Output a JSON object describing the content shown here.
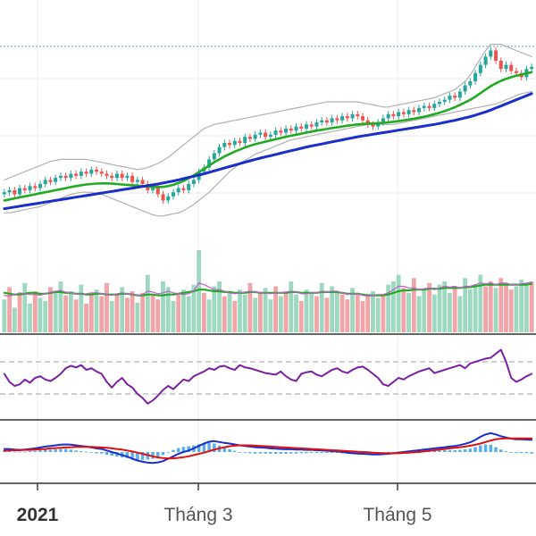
{
  "chart_data": {
    "type": "candlestick",
    "title": "",
    "xlabel": "",
    "ylabel": "",
    "grid": true,
    "x_tick_labels": [
      "2021",
      "Tháng 3",
      "Tháng 5"
    ],
    "x_tick_bold": [
      true,
      false,
      false
    ],
    "colors": {
      "up": "#26a69a",
      "down": "#ef5350",
      "up_volume": "#9ed8c0",
      "down_volume": "#f2a5a8",
      "ma_fast": "#22aa22",
      "ma_slow": "#1a2ecc",
      "bollinger": "#b0b0b0",
      "short_ma": "#c060d0",
      "rsi": "#7b1fa2",
      "macd": "#1a2ecc",
      "signal": "#e01010",
      "histogram": "#5aaee8",
      "reference_line": "#4fb3c8"
    },
    "price_panel": {
      "ylim": [
        0,
        100
      ],
      "reference_level": 97,
      "close": [
        26,
        27,
        25,
        28,
        27,
        29,
        28,
        30,
        32,
        31,
        33,
        34,
        33,
        35,
        34,
        36,
        35,
        37,
        36,
        35,
        34,
        33,
        35,
        33,
        34,
        31,
        32,
        30,
        27,
        28,
        25,
        22,
        24,
        26,
        28,
        27,
        30,
        32,
        36,
        38,
        42,
        45,
        48,
        50,
        49,
        51,
        50,
        53,
        52,
        54,
        55,
        53,
        54,
        56,
        55,
        57,
        56,
        58,
        57,
        59,
        58,
        60,
        61,
        60,
        62,
        61,
        63,
        62,
        64,
        63,
        61,
        59,
        58,
        60,
        62,
        64,
        63,
        65,
        64,
        66,
        65,
        67,
        68,
        67,
        69,
        70,
        71,
        73,
        72,
        75,
        78,
        80,
        84,
        88,
        92,
        95,
        90,
        86,
        88,
        85,
        84,
        82,
        86,
        87
      ],
      "ma_fast": [
        22,
        22.5,
        23,
        23.5,
        24,
        24.5,
        25,
        25.5,
        26,
        26.5,
        27,
        27.5,
        28,
        28.5,
        29,
        29.4,
        29.8,
        30,
        30.2,
        30.3,
        30.3,
        30.2,
        30,
        29.8,
        29.6,
        29.4,
        29.2,
        29,
        28.8,
        28.6,
        28.5,
        28.6,
        29,
        29.6,
        30.5,
        31.5,
        32.8,
        34.2,
        35.8,
        37.4,
        39,
        40.6,
        42,
        43.4,
        44.6,
        45.8,
        46.8,
        47.8,
        48.6,
        49.4,
        50,
        50.6,
        51.2,
        51.8,
        52.4,
        53,
        53.5,
        54,
        54.5,
        55,
        55.5,
        56,
        56.4,
        56.8,
        57.2,
        57.6,
        58,
        58.4,
        58.7,
        59,
        59.2,
        59.4,
        59.5,
        59.6,
        59.8,
        60,
        60.3,
        60.6,
        61,
        61.4,
        61.8,
        62.3,
        62.8,
        63.4,
        64,
        64.7,
        65.5,
        66.4,
        67.4,
        68.5,
        69.7,
        71,
        72.5,
        74.2,
        76,
        77.6,
        79,
        80.2,
        81.2,
        82,
        82.7,
        83.3,
        83.9,
        84.4
      ],
      "ma_slow": [
        18,
        18.4,
        18.8,
        19.2,
        19.6,
        20,
        20.4,
        20.8,
        21.2,
        21.6,
        22,
        22.4,
        22.8,
        23.2,
        23.6,
        24,
        24.4,
        24.8,
        25.2,
        25.6,
        26,
        26.4,
        26.8,
        27.2,
        27.6,
        28,
        28.4,
        28.8,
        29.2,
        29.6,
        30,
        30.5,
        31,
        31.5,
        32,
        32.6,
        33.2,
        33.8,
        34.4,
        35,
        35.7,
        36.4,
        37.1,
        37.8,
        38.5,
        39.2,
        39.9,
        40.6,
        41.3,
        42,
        42.6,
        43.2,
        43.8,
        44.4,
        45,
        45.6,
        46.2,
        46.8,
        47.4,
        48,
        48.5,
        49,
        49.5,
        50,
        50.5,
        51,
        51.5,
        52,
        52.5,
        53,
        53.4,
        53.8,
        54.2,
        54.6,
        55,
        55.4,
        55.8,
        56.2,
        56.6,
        57,
        57.4,
        57.8,
        58.2,
        58.6,
        59,
        59.5,
        60,
        60.5,
        61,
        61.6,
        62.2,
        62.8,
        63.5,
        64.3,
        65.1,
        66,
        67,
        68,
        69,
        70,
        71,
        72,
        73,
        74
      ],
      "bb_upper": [
        32,
        33,
        34,
        35,
        36,
        37,
        38,
        39,
        40,
        41,
        41.5,
        42,
        42,
        42,
        42,
        42,
        42,
        41.5,
        41,
        40.5,
        40,
        39.5,
        39,
        38.5,
        38,
        37.5,
        37,
        37.5,
        38,
        39,
        40,
        41.5,
        43,
        45,
        47,
        49,
        51,
        53,
        55,
        57,
        58,
        59,
        59.5,
        60,
        60.5,
        61,
        61.5,
        62,
        62.5,
        63,
        63.5,
        64,
        64.5,
        65,
        65.5,
        66,
        66.5,
        67,
        67.5,
        68,
        68.5,
        69,
        69.5,
        70,
        70,
        70,
        70,
        70,
        70,
        70,
        69.5,
        69,
        68.5,
        68,
        67.5,
        67.5,
        68,
        68.5,
        69,
        69.5,
        70,
        70.5,
        71,
        71.5,
        72,
        73,
        74,
        75,
        76,
        78,
        80,
        83,
        87,
        91,
        95,
        98,
        98,
        98,
        97,
        96,
        95,
        94,
        93,
        92
      ],
      "bb_lower": [
        16,
        16,
        16.5,
        17,
        17.5,
        18,
        18.5,
        19,
        20,
        21,
        22,
        23,
        24,
        25,
        25.5,
        26,
        26,
        26,
        25.5,
        25,
        24,
        23,
        22,
        21,
        20,
        19,
        18,
        17,
        16,
        15,
        14.5,
        14.5,
        15,
        15.5,
        16,
        17,
        18.5,
        20,
        22,
        24,
        26,
        28.5,
        31,
        33.5,
        36,
        38,
        40,
        41.5,
        43,
        44.5,
        45.5,
        46.5,
        47.5,
        48.5,
        49.5,
        50.5,
        51.5,
        52,
        52.5,
        53,
        53.5,
        54,
        54.5,
        55,
        55.5,
        56,
        56.5,
        57,
        57.5,
        58,
        58.5,
        59,
        59,
        59,
        59,
        59,
        59,
        59.5,
        60,
        60.5,
        61,
        61.5,
        62,
        62.5,
        63,
        63.5,
        64,
        64.5,
        65,
        65.5,
        66,
        66.5,
        67,
        67.5,
        68,
        68.5,
        69,
        70,
        71,
        72,
        73,
        74,
        74.5,
        75
      ]
    },
    "volume_panel": {
      "ylim": [
        0,
        100
      ],
      "values": [
        40,
        55,
        30,
        45,
        60,
        35,
        50,
        42,
        38,
        55,
        48,
        62,
        45,
        50,
        40,
        58,
        35,
        48,
        52,
        44,
        60,
        38,
        46,
        55,
        42,
        50,
        36,
        48,
        70,
        45,
        40,
        62,
        55,
        38,
        46,
        52,
        44,
        58,
        100,
        48,
        40,
        56,
        62,
        44,
        50,
        38,
        52,
        46,
        60,
        42,
        48,
        54,
        40,
        56,
        44,
        50,
        62,
        46,
        38,
        52,
        48,
        44,
        60,
        42,
        56,
        50,
        46,
        40,
        54,
        48,
        38,
        44,
        50,
        42,
        46,
        58,
        62,
        70,
        54,
        48,
        66,
        44,
        52,
        60,
        46,
        58,
        62,
        48,
        56,
        44,
        66,
        52,
        58,
        70,
        56,
        62,
        54,
        66,
        60,
        52,
        56,
        64,
        58,
        62
      ],
      "up": [
        1,
        0,
        1,
        0,
        1,
        1,
        0,
        1,
        1,
        0,
        1,
        1,
        0,
        1,
        0,
        1,
        0,
        0,
        1,
        0,
        0,
        1,
        0,
        1,
        0,
        0,
        1,
        0,
        1,
        0,
        0,
        1,
        1,
        1,
        0,
        1,
        1,
        1,
        1,
        0,
        1,
        1,
        1,
        0,
        1,
        0,
        1,
        1,
        0,
        1,
        0,
        1,
        1,
        0,
        1,
        0,
        1,
        1,
        0,
        1,
        1,
        0,
        1,
        0,
        1,
        1,
        0,
        0,
        1,
        0,
        0,
        0,
        1,
        1,
        0,
        1,
        1,
        1,
        0,
        1,
        0,
        1,
        1,
        0,
        1,
        1,
        1,
        1,
        0,
        1,
        1,
        1,
        1,
        1,
        0,
        0,
        1,
        0,
        0,
        0,
        1,
        1,
        1,
        0
      ],
      "ma_volume": [
        48,
        47,
        46,
        46,
        47,
        48,
        48,
        47,
        47,
        48,
        49,
        49,
        48,
        48,
        47,
        47,
        46,
        46,
        47,
        47,
        46,
        46,
        46,
        47,
        47,
        46,
        45,
        45,
        46,
        46,
        45,
        45,
        46,
        46,
        47,
        48,
        49,
        50,
        52,
        52,
        51,
        50,
        50,
        49,
        49,
        48,
        48,
        48,
        49,
        49,
        48,
        48,
        48,
        48,
        48,
        48,
        49,
        49,
        48,
        48,
        48,
        48,
        49,
        49,
        49,
        49,
        48,
        47,
        47,
        47,
        46,
        45,
        45,
        45,
        45,
        46,
        48,
        50,
        51,
        51,
        52,
        52,
        52,
        53,
        53,
        53,
        54,
        54,
        54,
        54,
        55,
        55,
        56,
        57,
        58,
        58,
        58,
        58,
        58,
        58,
        58,
        58,
        58,
        59
      ],
      "ma_volume_short": [
        45,
        44,
        46,
        48,
        47,
        46,
        46,
        45,
        47,
        49,
        50,
        51,
        49,
        48,
        47,
        46,
        47,
        48,
        48,
        47,
        46,
        45,
        47,
        48,
        47,
        46,
        45,
        46,
        50,
        49,
        47,
        48,
        50,
        48,
        47,
        46,
        47,
        50,
        60,
        58,
        55,
        52,
        52,
        50,
        48,
        47,
        48,
        49,
        50,
        49,
        48,
        48,
        47,
        48,
        48,
        49,
        50,
        49,
        47,
        47,
        48,
        48,
        50,
        49,
        50,
        50,
        48,
        46,
        47,
        47,
        45,
        44,
        45,
        46,
        46,
        48,
        52,
        56,
        56,
        54,
        54,
        52,
        53,
        54,
        52,
        54,
        56,
        55,
        56,
        54,
        56,
        56,
        58,
        60,
        59,
        60,
        58,
        60,
        60,
        58,
        58,
        59,
        60,
        61
      ]
    },
    "rsi_panel": {
      "ylim": [
        0,
        100
      ],
      "levels": [
        70,
        30
      ],
      "values": [
        55,
        45,
        40,
        42,
        48,
        44,
        50,
        52,
        48,
        46,
        50,
        55,
        62,
        65,
        63,
        66,
        60,
        62,
        58,
        55,
        45,
        38,
        45,
        50,
        42,
        38,
        30,
        25,
        18,
        22,
        28,
        35,
        40,
        36,
        42,
        48,
        46,
        52,
        55,
        58,
        62,
        60,
        64,
        65,
        62,
        60,
        66,
        63,
        62,
        60,
        58,
        56,
        55,
        54,
        58,
        52,
        48,
        46,
        55,
        57,
        58,
        54,
        52,
        56,
        60,
        62,
        58,
        56,
        60,
        63,
        64,
        60,
        55,
        50,
        42,
        40,
        45,
        50,
        48,
        52,
        55,
        58,
        60,
        62,
        56,
        58,
        60,
        62,
        64,
        66,
        62,
        68,
        70,
        72,
        74,
        75,
        80,
        85,
        70,
        50,
        45,
        48,
        52,
        55
      ]
    },
    "macd_panel": {
      "ylim": [
        -100,
        100
      ],
      "macd": [
        10,
        10,
        8,
        7,
        8,
        10,
        12,
        15,
        18,
        20,
        22,
        24,
        25,
        24,
        22,
        20,
        18,
        15,
        12,
        10,
        5,
        0,
        -5,
        -10,
        -15,
        -22,
        -28,
        -32,
        -35,
        -36,
        -34,
        -30,
        -22,
        -14,
        -6,
        0,
        5,
        12,
        20,
        28,
        34,
        36,
        33,
        30,
        28,
        25,
        22,
        20,
        18,
        16,
        15,
        14,
        12,
        11,
        10,
        9,
        9,
        8,
        8,
        7,
        7,
        6,
        5,
        4,
        3,
        2,
        0,
        -2,
        -4,
        -5,
        -6,
        -7,
        -8,
        -8,
        -7,
        -6,
        -4,
        -2,
        0,
        2,
        4,
        6,
        8,
        10,
        12,
        14,
        16,
        18,
        20,
        23,
        27,
        32,
        40,
        50,
        58,
        62,
        58,
        52,
        48,
        44,
        42,
        42,
        41,
        40
      ],
      "signal": [
        4,
        5,
        6,
        6,
        7,
        7,
        8,
        9,
        10,
        12,
        13,
        14,
        15,
        16,
        17,
        17,
        17,
        17,
        16,
        15,
        14,
        12,
        10,
        8,
        5,
        2,
        -2,
        -6,
        -10,
        -14,
        -18,
        -20,
        -21,
        -21,
        -19,
        -17,
        -14,
        -10,
        -6,
        -2,
        3,
        8,
        12,
        16,
        19,
        21,
        22,
        22,
        22,
        21,
        20,
        19,
        18,
        17,
        16,
        15,
        14,
        13,
        12,
        11,
        10,
        9,
        8,
        7,
        6,
        5,
        4,
        3,
        2,
        1,
        0,
        -1,
        -2,
        -3,
        -4,
        -4,
        -4,
        -4,
        -3,
        -2,
        -1,
        0,
        2,
        4,
        6,
        8,
        10,
        12,
        14,
        16,
        18,
        21,
        24,
        28,
        33,
        38,
        42,
        44,
        45,
        45,
        45,
        45,
        45,
        45
      ]
    }
  }
}
